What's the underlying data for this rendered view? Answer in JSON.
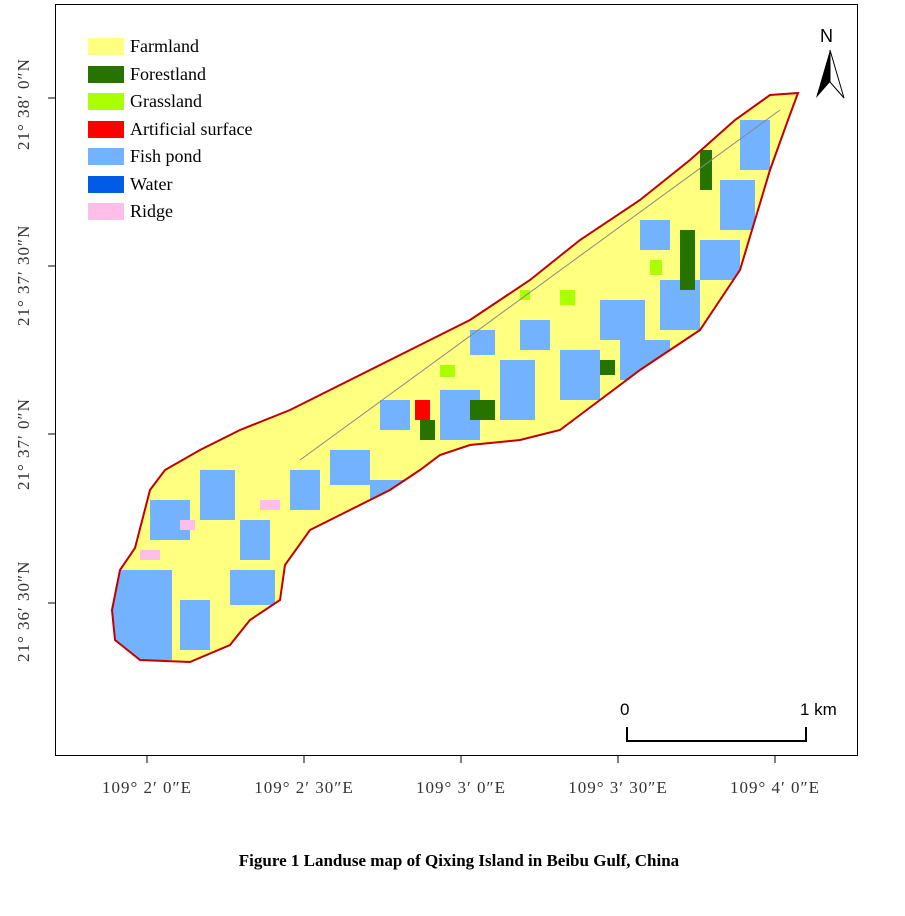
{
  "legend": {
    "items": [
      {
        "label": "Farmland",
        "color": "#ffff80"
      },
      {
        "label": "Forestland",
        "color": "#267300"
      },
      {
        "label": "Grassland",
        "color": "#aaff00"
      },
      {
        "label": "Artificial surface",
        "color": "#ff0000"
      },
      {
        "label": "Fish pond",
        "color": "#73b2ff"
      },
      {
        "label": "Water",
        "color": "#005ce6"
      },
      {
        "label": "Ridge",
        "color": "#ffbee8"
      }
    ]
  },
  "axes": {
    "latitude_labels": [
      "21° 38′ 0″N",
      "21° 37′ 30″N",
      "21° 37′ 0″N",
      "21° 36′ 30″N"
    ],
    "longitude_labels": [
      "109° 2′ 0″E",
      "109° 2′ 30″E",
      "109° 3′ 0″E",
      "109° 3′ 30″E",
      "109° 4′ 0″E"
    ]
  },
  "scale_bar": {
    "start_label": "0",
    "end_label": "1 km"
  },
  "north_arrow": {
    "label": "N"
  },
  "caption": "Figure 1  Landuse map of Qixing Island in Beibu Gulf, China"
}
